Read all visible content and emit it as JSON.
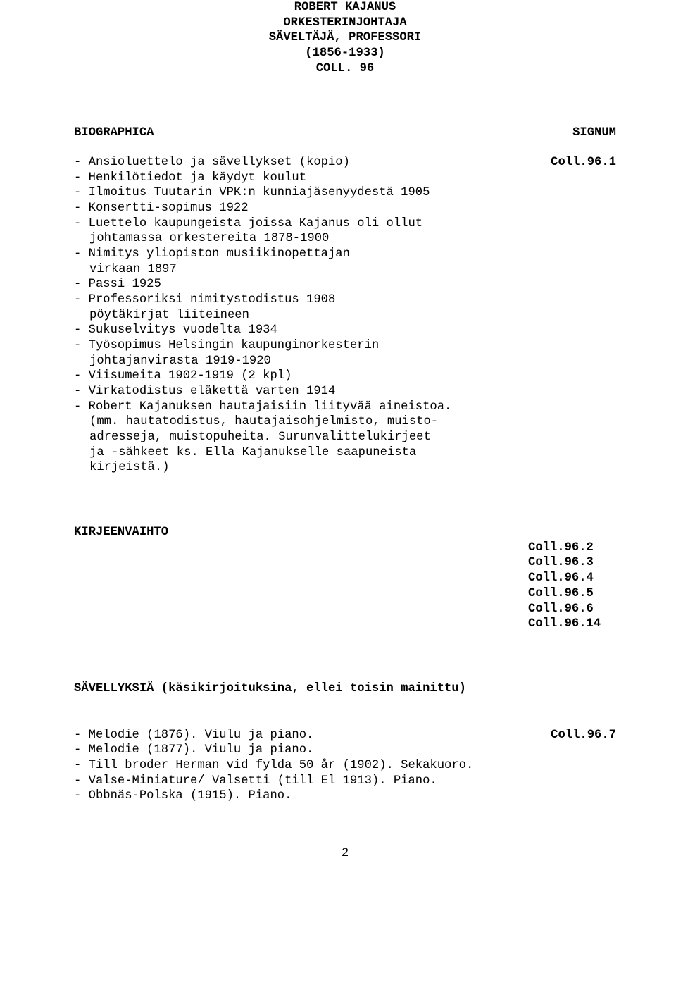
{
  "header": {
    "line1": "ROBERT KAJANUS",
    "line2": "ORKESTERINJOHTAJA",
    "line3": "SÄVELTÄJÄ, PROFESSORI",
    "line4": "(1856-1933)",
    "line5": "COLL. 96"
  },
  "biographica": {
    "heading": "BIOGRAPHICA",
    "signum_label": "SIGNUM",
    "signum": "Coll.96.1",
    "first_line": "- Ansioluettelo ja sävellykset (kopio)",
    "lines": [
      "- Henkilötiedot ja käydyt koulut",
      "- Ilmoitus Tuutarin VPK:n kunniajäsenyydestä 1905",
      "- Konsertti-sopimus 1922",
      "- Luettelo kaupungeista joissa Kajanus oli ollut",
      "  johtamassa orkestereita 1878-1900",
      "- Nimitys yliopiston musiikinopettajan",
      "  virkaan 1897",
      "- Passi 1925",
      "- Professoriksi nimitystodistus 1908",
      "  pöytäkirjat liiteineen",
      "- Sukuselvitys vuodelta 1934",
      "- Työsopimus Helsingin kaupunginorkesterin",
      "  johtajanvirasta 1919-1920",
      "- Viisumeita 1902-1919 (2 kpl)",
      "- Virkatodistus eläkettä varten 1914",
      "- Robert Kajanuksen hautajaisiin liityvää aineistoa.",
      "  (mm. hautatodistus, hautajaisohjelmisto, muisto-",
      "  adresseja, muistopuheita. Surunvalittelukirjeet",
      "  ja -sähkeet ks. Ella Kajanukselle saapuneista",
      "  kirjeistä.)"
    ]
  },
  "kirje": {
    "heading": "KIRJEENVAIHTO",
    "signums": [
      "Coll.96.2",
      "Coll.96.3",
      "Coll.96.4",
      "Coll.96.5",
      "Coll.96.6",
      "Coll.96.14"
    ]
  },
  "savel": {
    "heading": "SÄVELLYKSIÄ (käsikirjoituksina, ellei toisin mainittu)",
    "signum": "Coll.96.7",
    "first_line": "- Melodie (1876). Viulu ja piano.",
    "lines": [
      "- Melodie (1877). Viulu ja piano.",
      "- Till broder Herman vid fylda 50 år (1902). Sekakuoro.",
      "- Valse-Miniature/ Valsetti (till El 1913). Piano.",
      "- Obbnäs-Polska (1915). Piano."
    ]
  },
  "page": "2"
}
